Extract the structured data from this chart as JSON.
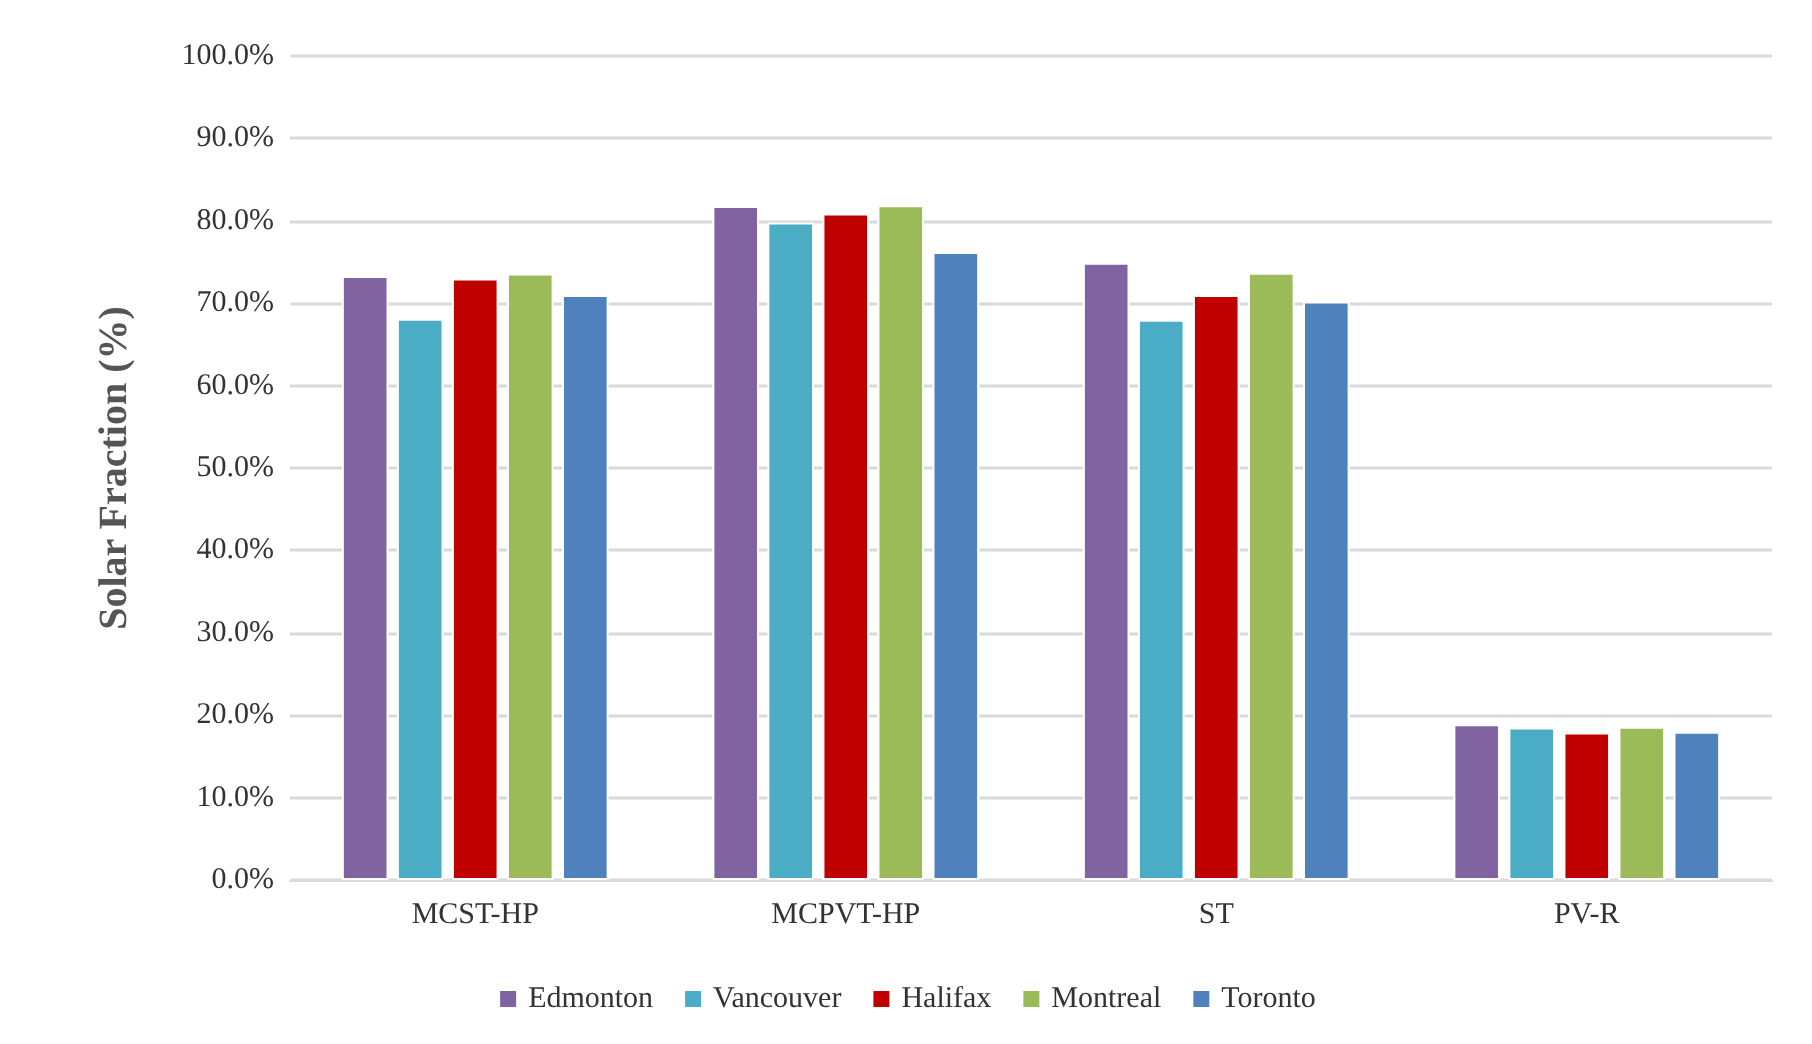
{
  "chart_data": {
    "type": "bar",
    "ylabel": "Solar Fraction (%)",
    "categories": [
      "MCST-HP",
      "MCPVT-HP",
      "ST",
      "PV-R"
    ],
    "series": [
      {
        "name": "Edmonton",
        "color": "#8064a2",
        "values": [
          73.3,
          81.8,
          74.9,
          18.9
        ]
      },
      {
        "name": "Vancouver",
        "color": "#4bacc6",
        "values": [
          68.1,
          79.8,
          68.0,
          18.5
        ]
      },
      {
        "name": "Halifax",
        "color": "#c00000",
        "values": [
          73.0,
          80.9,
          71.0,
          17.9
        ]
      },
      {
        "name": "Montreal",
        "color": "#9bbb59",
        "values": [
          73.6,
          81.9,
          73.7,
          18.6
        ]
      },
      {
        "name": "Toronto",
        "color": "#4f81bd",
        "values": [
          71.0,
          76.2,
          70.2,
          18.0
        ]
      }
    ],
    "ylim": [
      0,
      100
    ],
    "yticks": [
      {
        "value": 0,
        "label": "0.0%"
      },
      {
        "value": 10,
        "label": "10.0%"
      },
      {
        "value": 20,
        "label": "20.0%"
      },
      {
        "value": 30,
        "label": "30.0%"
      },
      {
        "value": 40,
        "label": "40.0%"
      },
      {
        "value": 50,
        "label": "50.0%"
      },
      {
        "value": 60,
        "label": "60.0%"
      },
      {
        "value": 70,
        "label": "70.0%"
      },
      {
        "value": 80,
        "label": "80.0%"
      },
      {
        "value": 90,
        "label": "90.0%"
      },
      {
        "value": 100,
        "label": "100.0%"
      }
    ],
    "grid": "y",
    "legend": "bottom"
  }
}
